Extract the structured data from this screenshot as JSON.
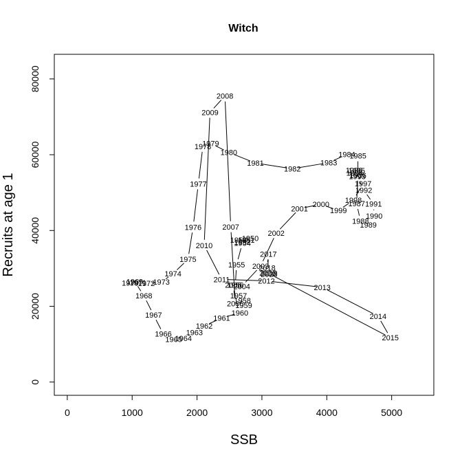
{
  "chart_data": {
    "type": "line",
    "title": "Witch",
    "xlabel": "SSB",
    "ylabel": "Recruits at age 1",
    "xlim": [
      -200,
      5650
    ],
    "ylim": [
      -3500,
      86500
    ],
    "xticks": [
      0,
      1000,
      2000,
      3000,
      4000,
      5000
    ],
    "yticks": [
      0,
      20000,
      40000,
      60000,
      80000
    ],
    "grid": false,
    "legend": "none",
    "series": [
      {
        "points": [
          {
            "year": "1950",
            "x": 2820,
            "y": 38000
          },
          {
            "year": "1951",
            "x": 2760,
            "y": 37500
          },
          {
            "year": "1952",
            "x": 2700,
            "y": 37000
          },
          {
            "year": "1953",
            "x": 2640,
            "y": 37500
          },
          {
            "year": "1954",
            "x": 2700,
            "y": 36700
          },
          {
            "year": "1955",
            "x": 2610,
            "y": 31000
          },
          {
            "year": "1956",
            "x": 2590,
            "y": 25600
          },
          {
            "year": "1957",
            "x": 2640,
            "y": 22800
          },
          {
            "year": "1958",
            "x": 2700,
            "y": 21500
          },
          {
            "year": "1959",
            "x": 2720,
            "y": 20300
          },
          {
            "year": "1960",
            "x": 2660,
            "y": 18300
          },
          {
            "year": "1961",
            "x": 2380,
            "y": 16900
          },
          {
            "year": "1962",
            "x": 2110,
            "y": 14800
          },
          {
            "year": "1963",
            "x": 1960,
            "y": 13100
          },
          {
            "year": "1964",
            "x": 1790,
            "y": 11600
          },
          {
            "year": "1965",
            "x": 1640,
            "y": 11300
          },
          {
            "year": "1966",
            "x": 1480,
            "y": 12700
          },
          {
            "year": "1967",
            "x": 1330,
            "y": 17700
          },
          {
            "year": "1968",
            "x": 1180,
            "y": 22800
          },
          {
            "year": "1969",
            "x": 1040,
            "y": 26500
          },
          {
            "year": "1970",
            "x": 970,
            "y": 26200
          },
          {
            "year": "1971",
            "x": 1090,
            "y": 26300
          },
          {
            "year": "1972",
            "x": 1220,
            "y": 26100
          },
          {
            "year": "1973",
            "x": 1450,
            "y": 26400
          },
          {
            "year": "1974",
            "x": 1630,
            "y": 28600
          },
          {
            "year": "1975",
            "x": 1860,
            "y": 32400
          },
          {
            "year": "1976",
            "x": 1940,
            "y": 40900
          },
          {
            "year": "1977",
            "x": 2020,
            "y": 52300
          },
          {
            "year": "1978",
            "x": 2090,
            "y": 62200
          },
          {
            "year": "1979",
            "x": 2210,
            "y": 63000
          },
          {
            "year": "1980",
            "x": 2490,
            "y": 60600
          },
          {
            "year": "1981",
            "x": 2900,
            "y": 57800
          },
          {
            "year": "1982",
            "x": 3470,
            "y": 56300
          },
          {
            "year": "1983",
            "x": 4030,
            "y": 57900
          },
          {
            "year": "1984",
            "x": 4310,
            "y": 60100
          },
          {
            "year": "1985",
            "x": 4480,
            "y": 59700
          },
          {
            "year": "1986",
            "x": 4480,
            "y": 54600
          },
          {
            "year": "1987",
            "x": 4460,
            "y": 47100
          },
          {
            "year": "1988",
            "x": 4520,
            "y": 42500
          },
          {
            "year": "1989",
            "x": 4640,
            "y": 41500
          },
          {
            "year": "1990",
            "x": 4730,
            "y": 43900
          },
          {
            "year": "1991",
            "x": 4720,
            "y": 47000
          },
          {
            "year": "1992",
            "x": 4570,
            "y": 50700
          },
          {
            "year": "1993",
            "x": 4470,
            "y": 54300
          },
          {
            "year": "1994",
            "x": 4430,
            "y": 55200
          },
          {
            "year": "1995",
            "x": 4460,
            "y": 55800
          },
          {
            "year": "1996",
            "x": 4420,
            "y": 55900
          },
          {
            "year": "1997",
            "x": 4560,
            "y": 52400
          },
          {
            "year": "1998",
            "x": 4410,
            "y": 48000
          },
          {
            "year": "1999",
            "x": 4180,
            "y": 45300
          },
          {
            "year": "2000",
            "x": 3910,
            "y": 46900
          },
          {
            "year": "2001",
            "x": 3580,
            "y": 45800
          },
          {
            "year": "2002",
            "x": 3220,
            "y": 39300
          },
          {
            "year": "2003",
            "x": 2980,
            "y": 30600
          },
          {
            "year": "2004",
            "x": 2690,
            "y": 25300
          },
          {
            "year": "2005",
            "x": 2560,
            "y": 25600
          },
          {
            "year": "2006",
            "x": 2590,
            "y": 20700
          },
          {
            "year": "2007",
            "x": 2520,
            "y": 41000
          },
          {
            "year": "2008",
            "x": 2430,
            "y": 75500
          },
          {
            "year": "2009",
            "x": 2200,
            "y": 71200
          },
          {
            "year": "2010",
            "x": 2110,
            "y": 36100
          },
          {
            "year": "2011",
            "x": 2380,
            "y": 27100
          },
          {
            "year": "2012",
            "x": 3070,
            "y": 26700
          },
          {
            "year": "2013",
            "x": 3930,
            "y": 25000
          },
          {
            "year": "2014",
            "x": 4790,
            "y": 17400
          },
          {
            "year": "2015",
            "x": 4980,
            "y": 11700
          },
          {
            "year": "2016",
            "x": 3090,
            "y": 28800
          },
          {
            "year": "2017",
            "x": 3100,
            "y": 33800
          },
          {
            "year": "2018",
            "x": 3080,
            "y": 30200
          },
          {
            "year": "2019",
            "x": 3110,
            "y": 28800
          },
          {
            "year": "2020",
            "x": 3110,
            "y": 28400
          }
        ]
      }
    ]
  }
}
